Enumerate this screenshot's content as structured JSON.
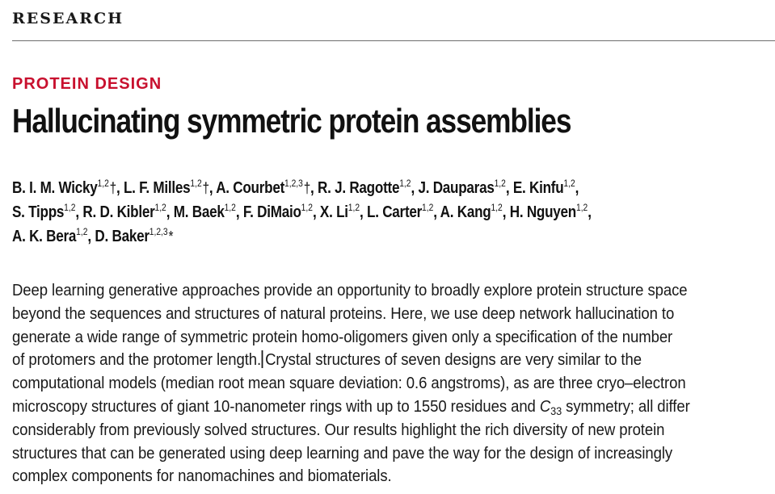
{
  "section": "RESEARCH",
  "category": "PROTEIN DESIGN",
  "title": "Hallucinating symmetric protein assemblies",
  "authors": [
    [
      {
        "name": "B. I. M. Wicky",
        "aff": "1,2",
        "mark": "†",
        "sep": ", "
      },
      {
        "name": "L. F. Milles",
        "aff": "1,2",
        "mark": "†",
        "sep": ", "
      },
      {
        "name": "A. Courbet",
        "aff": "1,2,3",
        "mark": "†",
        "sep": ", "
      },
      {
        "name": "R. J. Ragotte",
        "aff": "1,2",
        "mark": "",
        "sep": ", "
      },
      {
        "name": "J. Dauparas",
        "aff": "1,2",
        "mark": "",
        "sep": ", "
      },
      {
        "name": "E. Kinfu",
        "aff": "1,2",
        "mark": "",
        "sep": ","
      }
    ],
    [
      {
        "name": "S. Tipps",
        "aff": "1,2",
        "mark": "",
        "sep": ", "
      },
      {
        "name": "R. D. Kibler",
        "aff": "1,2",
        "mark": "",
        "sep": ", "
      },
      {
        "name": "M. Baek",
        "aff": "1,2",
        "mark": "",
        "sep": ", "
      },
      {
        "name": "F. DiMaio",
        "aff": "1,2",
        "mark": "",
        "sep": ", "
      },
      {
        "name": "X. Li",
        "aff": "1,2",
        "mark": "",
        "sep": ", "
      },
      {
        "name": "L. Carter",
        "aff": "1,2",
        "mark": "",
        "sep": ", "
      },
      {
        "name": "A. Kang",
        "aff": "1,2",
        "mark": "",
        "sep": ", "
      },
      {
        "name": "H. Nguyen",
        "aff": "1,2",
        "mark": "",
        "sep": ","
      }
    ],
    [
      {
        "name": "A. K. Bera",
        "aff": "1,2",
        "mark": "",
        "sep": ", "
      },
      {
        "name": "D. Baker",
        "aff": "1,2,3",
        "mark": "*",
        "sep": ""
      }
    ]
  ],
  "abstract": {
    "line1": "Deep learning generative approaches provide an opportunity to broadly explore protein structure space",
    "line2": "beyond the sequences and structures of natural proteins. Here, we use deep network hallucination to",
    "line3": "generate a wide range of symmetric protein homo-oligomers given only a specification of the number",
    "line4a": "of protomers and the protomer length.",
    "line4b": "Crystal structures of seven designs are very similar to the",
    "line5": "computational models (median root mean square deviation: 0.6 angstroms), as are three cryo–electron",
    "line6a": "microscopy structures of giant 10-nanometer rings with up to 1550 residues and ",
    "line6_sym": "C",
    "line6_sub": "33",
    "line6b": " symmetry; all differ",
    "line7": "considerably from previously solved structures. Our results highlight the rich diversity of new protein",
    "line8": "structures that can be generated using deep learning and pave the way for the design of increasingly",
    "line9": "complex components for nanomachines and biomaterials."
  }
}
